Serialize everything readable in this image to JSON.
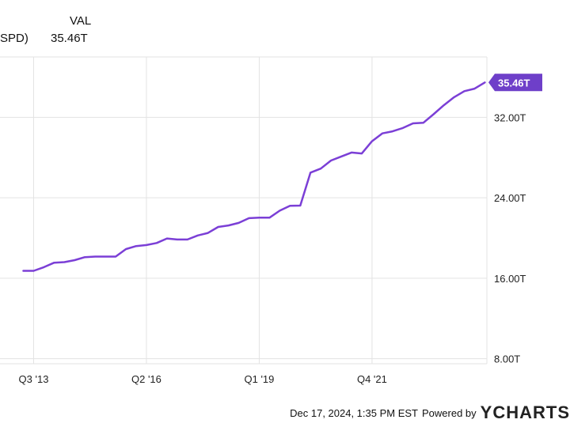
{
  "legend": {
    "series_label": "SPD)",
    "value_header": "VAL",
    "value": "35.46T"
  },
  "footer": {
    "timestamp": "Dec 17, 2024, 1:35 PM EST",
    "powered_by": "Powered by",
    "brand": "YCHARTS"
  },
  "colors": {
    "line": "#7b3fd6",
    "grid": "#e3e3e3",
    "badge_bg": "#6e3fc9",
    "badge_text": "#ffffff"
  },
  "chart_data": {
    "type": "line",
    "ylim": [
      7.5,
      38
    ],
    "y_ticks": [
      8,
      16,
      24,
      32
    ],
    "y_tick_labels": [
      "8.00T",
      "16.00T",
      "24.00T",
      "32.00T"
    ],
    "x_ticks": [
      2013.5,
      2016.25,
      2019.0,
      2021.75
    ],
    "x_tick_labels": [
      "Q3 '13",
      "Q2 '16",
      "Q1 '19",
      "Q4 '21"
    ],
    "end_label": "35.46T",
    "series": [
      {
        "x": [
          2013.25,
          2013.5,
          2013.75,
          2014.0,
          2014.25,
          2014.5,
          2014.75,
          2015.0,
          2015.25,
          2015.5,
          2015.75,
          2016.0,
          2016.25,
          2016.5,
          2016.75,
          2017.0,
          2017.25,
          2017.5,
          2017.75,
          2018.0,
          2018.25,
          2018.5,
          2018.75,
          2019.0,
          2019.25,
          2019.5,
          2019.75,
          2020.0,
          2020.25,
          2020.5,
          2020.75,
          2021.0,
          2021.25,
          2021.5,
          2021.75,
          2022.0,
          2022.25,
          2022.5,
          2022.75,
          2023.0,
          2023.25,
          2023.5,
          2023.75,
          2024.0,
          2024.25,
          2024.5
        ],
        "y": [
          16.74,
          16.74,
          17.1,
          17.55,
          17.6,
          17.8,
          18.1,
          18.15,
          18.15,
          18.15,
          18.9,
          19.2,
          19.3,
          19.5,
          19.95,
          19.85,
          19.85,
          20.25,
          20.5,
          21.1,
          21.25,
          21.5,
          21.97,
          22.03,
          22.02,
          22.72,
          23.2,
          23.22,
          26.5,
          26.9,
          27.7,
          28.1,
          28.5,
          28.4,
          29.62,
          30.4,
          30.6,
          30.93,
          31.4,
          31.45,
          32.3,
          33.2,
          34.0,
          34.6,
          34.85,
          35.46
        ]
      }
    ]
  }
}
